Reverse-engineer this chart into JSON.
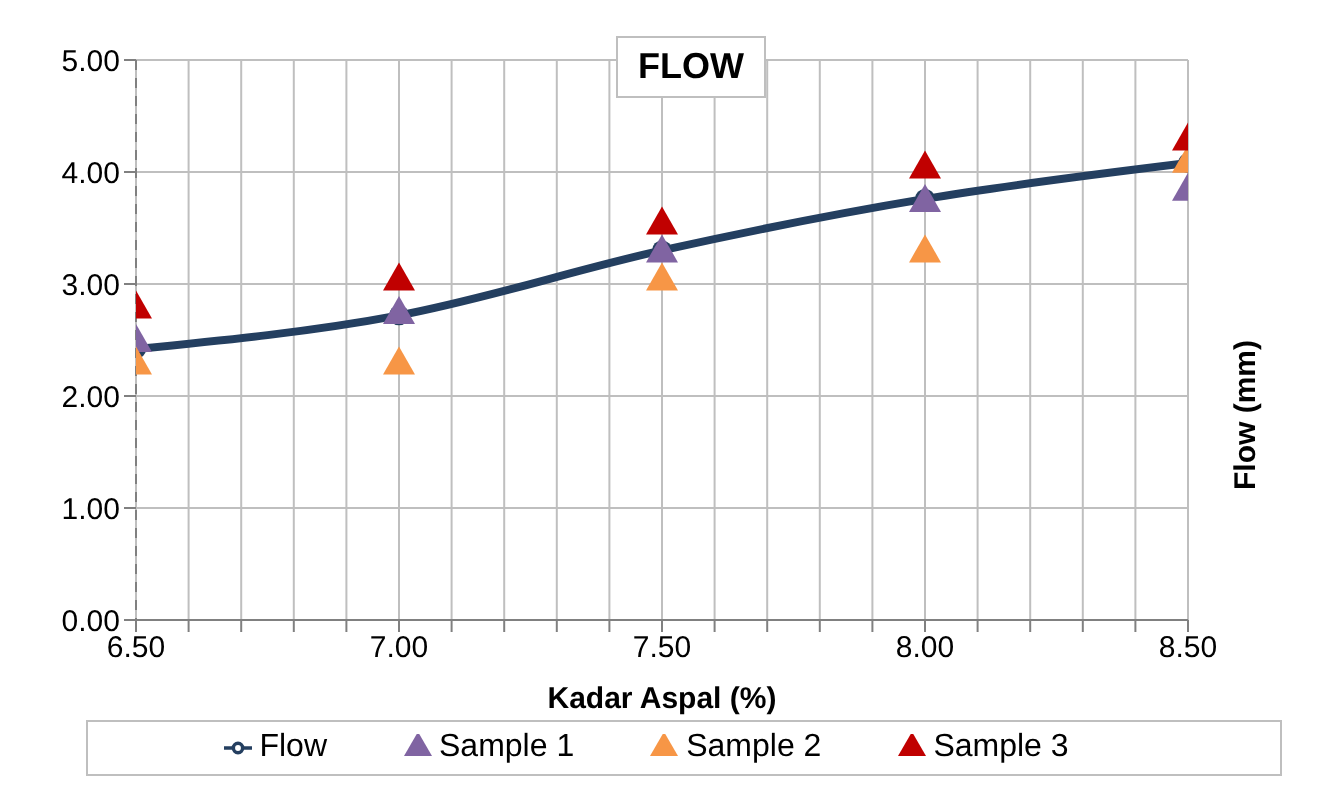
{
  "chart_data": {
    "type": "line",
    "title": "FLOW",
    "xlabel": "Kadar Aspal (%)",
    "ylabel": "Flow (mm)",
    "x": [
      6.5,
      7.0,
      7.5,
      8.0,
      8.5
    ],
    "series": [
      {
        "name": "Flow",
        "color": "#243f60",
        "values": [
          2.42,
          2.72,
          3.3,
          3.76,
          4.08
        ],
        "marker": "circle"
      },
      {
        "name": "Sample 1",
        "type": "scatter",
        "color": "#8064a2",
        "values": [
          2.5,
          2.75,
          3.3,
          3.75,
          3.85
        ],
        "marker": "triangle"
      },
      {
        "name": "Sample 2",
        "type": "scatter",
        "color": "#f79646",
        "values": [
          2.3,
          2.3,
          3.05,
          3.3,
          4.1
        ],
        "marker": "triangle"
      },
      {
        "name": "Sample 3",
        "type": "scatter",
        "color": "#c00000",
        "values": [
          2.8,
          3.05,
          3.55,
          4.05,
          4.3
        ],
        "marker": "triangle"
      }
    ],
    "xlim": [
      6.5,
      8.5
    ],
    "xticks": [
      {
        "value": 6.5,
        "label": "6.50"
      },
      {
        "value": 6.6,
        "label": null
      },
      {
        "value": 6.7,
        "label": null
      },
      {
        "value": 6.8,
        "label": null
      },
      {
        "value": 6.9,
        "label": null
      },
      {
        "value": 7.0,
        "label": "7.00"
      },
      {
        "value": 7.1,
        "label": null
      },
      {
        "value": 7.2,
        "label": null
      },
      {
        "value": 7.3,
        "label": null
      },
      {
        "value": 7.4,
        "label": null
      },
      {
        "value": 7.5,
        "label": "7.50"
      },
      {
        "value": 7.6,
        "label": null
      },
      {
        "value": 7.7,
        "label": null
      },
      {
        "value": 7.8,
        "label": null
      },
      {
        "value": 7.9,
        "label": null
      },
      {
        "value": 8.0,
        "label": "8.00"
      },
      {
        "value": 8.1,
        "label": null
      },
      {
        "value": 8.2,
        "label": null
      },
      {
        "value": 8.3,
        "label": null
      },
      {
        "value": 8.4,
        "label": null
      },
      {
        "value": 8.5,
        "label": "8.50"
      }
    ],
    "ylim": [
      0,
      5
    ],
    "yticks": [
      {
        "value": 0,
        "label": "0.00"
      },
      {
        "value": 1,
        "label": "1.00"
      },
      {
        "value": 2,
        "label": "2.00"
      },
      {
        "value": 3,
        "label": "3.00"
      },
      {
        "value": 4,
        "label": "4.00"
      },
      {
        "value": 5,
        "label": "5.00"
      }
    ],
    "grid": true,
    "legend": "bottom"
  }
}
